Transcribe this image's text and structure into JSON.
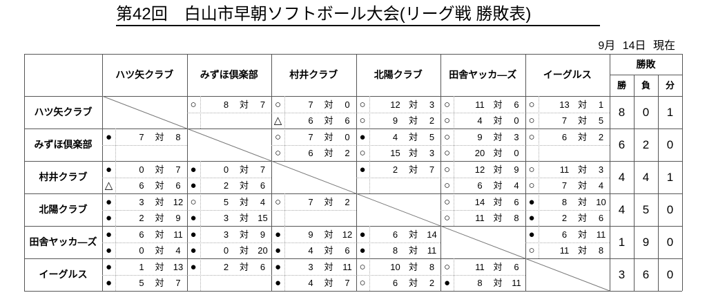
{
  "title": "第42回　白山市早朝ソフトボール大会(リーグ戦 勝敗表)",
  "date": "9月 14日 現在",
  "record_header": {
    "group": "勝敗",
    "win": "勝",
    "loss": "負",
    "draw": "分"
  },
  "vs": "対",
  "symbols": {
    "win": "○",
    "loss": "●",
    "draw": "△"
  },
  "teams": [
    "ハツ矢クラブ",
    "みずほ倶楽部",
    "村井クラブ",
    "北陽クラブ",
    "田舎ヤッカ―ズ",
    "イーグルス"
  ],
  "results": [
    [
      null,
      [
        [
          "○",
          "8",
          "7"
        ]
      ],
      [
        [
          "○",
          "7",
          "0"
        ],
        [
          "△",
          "6",
          "6"
        ]
      ],
      [
        [
          "○",
          "12",
          "3"
        ],
        [
          "○",
          "9",
          "2"
        ]
      ],
      [
        [
          "○",
          "11",
          "6"
        ],
        [
          "○",
          "4",
          "0"
        ]
      ],
      [
        [
          "○",
          "13",
          "1"
        ],
        [
          "○",
          "7",
          "5"
        ]
      ]
    ],
    [
      [
        [
          "●",
          "7",
          "8"
        ]
      ],
      null,
      [
        [
          "○",
          "7",
          "0"
        ],
        [
          "○",
          "6",
          "2"
        ]
      ],
      [
        [
          "●",
          "4",
          "5"
        ],
        [
          "○",
          "15",
          "3"
        ]
      ],
      [
        [
          "○",
          "9",
          "3"
        ],
        [
          "○",
          "20",
          "0"
        ]
      ],
      [
        [
          "○",
          "6",
          "2"
        ]
      ]
    ],
    [
      [
        [
          "●",
          "0",
          "7"
        ],
        [
          "△",
          "6",
          "6"
        ]
      ],
      [
        [
          "●",
          "0",
          "7"
        ],
        [
          "●",
          "2",
          "6"
        ]
      ],
      null,
      [
        [
          "●",
          "2",
          "7"
        ]
      ],
      [
        [
          "○",
          "12",
          "9"
        ],
        [
          "○",
          "6",
          "4"
        ]
      ],
      [
        [
          "○",
          "11",
          "3"
        ],
        [
          "○",
          "7",
          "4"
        ]
      ]
    ],
    [
      [
        [
          "●",
          "3",
          "12"
        ],
        [
          "●",
          "2",
          "9"
        ]
      ],
      [
        [
          "○",
          "5",
          "4"
        ],
        [
          "●",
          "3",
          "15"
        ]
      ],
      [
        [
          "○",
          "7",
          "2"
        ]
      ],
      null,
      [
        [
          "○",
          "14",
          "6"
        ],
        [
          "○",
          "11",
          "8"
        ]
      ],
      [
        [
          "●",
          "8",
          "10"
        ],
        [
          "●",
          "2",
          "6"
        ]
      ]
    ],
    [
      [
        [
          "●",
          "6",
          "11"
        ],
        [
          "●",
          "0",
          "4"
        ]
      ],
      [
        [
          "●",
          "3",
          "9"
        ],
        [
          "●",
          "0",
          "20"
        ]
      ],
      [
        [
          "●",
          "9",
          "12"
        ],
        [
          "●",
          "4",
          "6"
        ]
      ],
      [
        [
          "●",
          "6",
          "14"
        ],
        [
          "●",
          "8",
          "11"
        ]
      ],
      null,
      [
        [
          "●",
          "6",
          "11"
        ],
        [
          "○",
          "11",
          "8"
        ]
      ]
    ],
    [
      [
        [
          "●",
          "1",
          "13"
        ],
        [
          "●",
          "5",
          "7"
        ]
      ],
      [
        [
          "●",
          "2",
          "6"
        ]
      ],
      [
        [
          "●",
          "3",
          "11"
        ],
        [
          "●",
          "4",
          "7"
        ]
      ],
      [
        [
          "○",
          "10",
          "8"
        ],
        [
          "○",
          "6",
          "2"
        ]
      ],
      [
        [
          "○",
          "11",
          "6"
        ],
        [
          "●",
          "8",
          "11"
        ]
      ],
      null
    ]
  ],
  "records": [
    [
      "8",
      "0",
      "1"
    ],
    [
      "6",
      "2",
      "0"
    ],
    [
      "4",
      "4",
      "1"
    ],
    [
      "4",
      "5",
      "0"
    ],
    [
      "1",
      "9",
      "0"
    ],
    [
      "3",
      "6",
      "0"
    ]
  ]
}
